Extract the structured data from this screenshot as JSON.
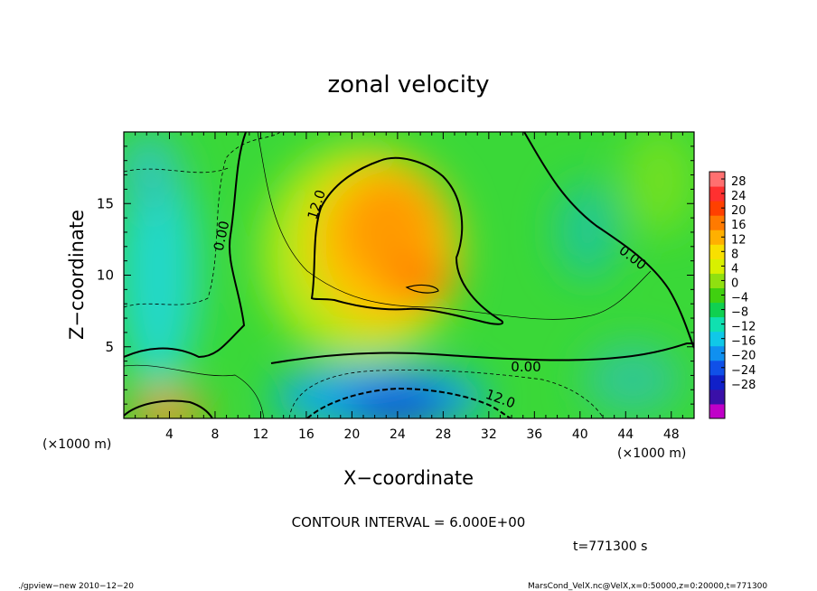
{
  "chart_data": {
    "type": "heatmap",
    "title": "zonal velocity",
    "xlabel": "X−coordinate",
    "ylabel": "Z−coordinate",
    "x_unit_label": "(×1000 m)",
    "y_unit_label": "(×1000 m)",
    "xlim": [
      0,
      50
    ],
    "ylim": [
      0,
      20
    ],
    "x_ticks": [
      "4",
      "8",
      "12",
      "16",
      "20",
      "24",
      "28",
      "32",
      "36",
      "40",
      "44",
      "48"
    ],
    "y_ticks": [
      "5",
      "10",
      "15"
    ],
    "colorbar_labels": [
      "28",
      "24",
      "20",
      "16",
      "12",
      "8",
      "4",
      "0",
      "−4",
      "−8",
      "−12",
      "−16",
      "−20",
      "−24",
      "−28"
    ],
    "colorbar_colors": [
      "#c000c8",
      "#3a10a8",
      "#1020c8",
      "#1050e8",
      "#1090f0",
      "#10c8e8",
      "#10e0b0",
      "#10d050",
      "#40d010",
      "#90e010",
      "#d8f000",
      "#f8e000",
      "#ffb000",
      "#ff7a00",
      "#ff4000",
      "#ff3030",
      "#ff7070"
    ],
    "contour_interval": "CONTOUR INTERVAL = 6.000E+00",
    "contour_labels": [
      "12.0",
      "0.00",
      "0.00",
      "0.00",
      "12.0"
    ],
    "time_label": "t=771300 s",
    "field_points": [
      {
        "x": 23,
        "z": 12,
        "u": 16
      },
      {
        "x": 26,
        "z": 9.3,
        "u": 20
      },
      {
        "x": 21,
        "z": 9.5,
        "u": 16
      },
      {
        "x": 20,
        "z": 14,
        "u": 14
      },
      {
        "x": 14,
        "z": 10,
        "u": 6
      },
      {
        "x": 35,
        "z": 12,
        "u": 4
      },
      {
        "x": 28,
        "z": 5.5,
        "u": 2
      },
      {
        "x": 22,
        "z": 1.5,
        "u": -18
      },
      {
        "x": 25,
        "z": 1,
        "u": -24
      },
      {
        "x": 4,
        "z": 0.5,
        "u": 14
      },
      {
        "x": 2,
        "z": 11,
        "u": -8
      },
      {
        "x": 3,
        "z": 16,
        "u": -6
      },
      {
        "x": 41,
        "z": 13,
        "u": -2
      },
      {
        "x": 46,
        "z": 4,
        "u": -4
      },
      {
        "x": 48,
        "z": 14,
        "u": 2
      },
      {
        "x": 10,
        "z": 17,
        "u": 2
      }
    ]
  },
  "footer": {
    "left": "./gpview−new   2010−12−20",
    "right": "MarsCond_VelX.nc@VelX,x=0:50000,z=0:20000,t=771300"
  }
}
